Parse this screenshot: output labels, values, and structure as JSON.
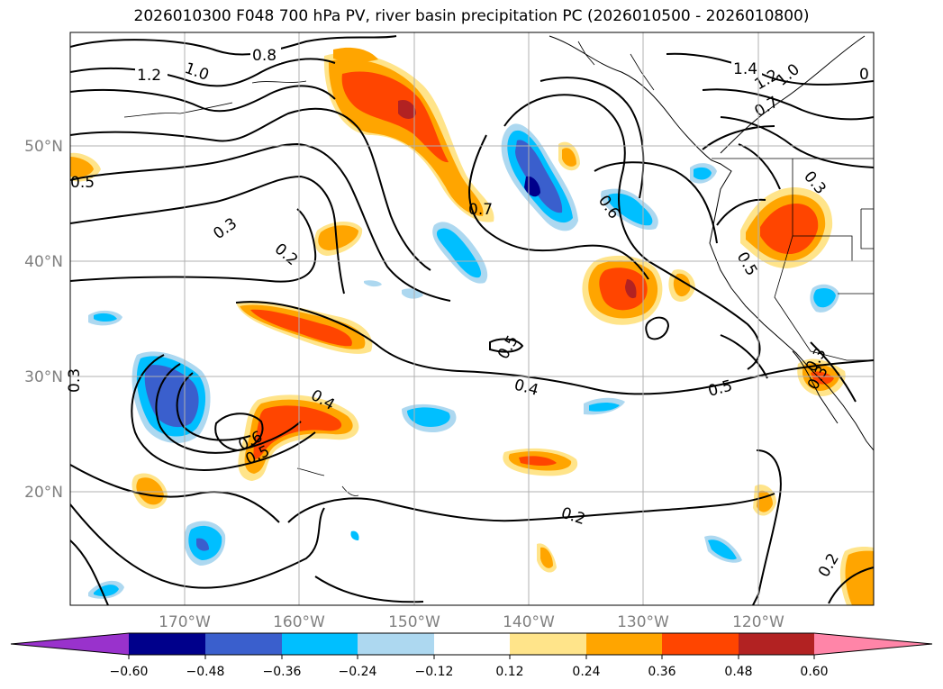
{
  "title": "2026010300 F048 700 hPa PV, river basin precipitation PC (2026010500 - 2026010800)",
  "map": {
    "lat_labels": [
      "50°N",
      "40°N",
      "30°N",
      "20°N"
    ],
    "lon_labels": [
      "170°W",
      "160°W",
      "150°W",
      "140°W",
      "130°W",
      "120°W"
    ],
    "contour_labels": [
      "1.2",
      "1.0",
      "0.8",
      "1.4",
      "1.2",
      "1.0",
      "0",
      "0.7",
      "0.5",
      "0.3",
      "0.2",
      "0.7",
      "0.6",
      "0.5",
      "0.4",
      "0.5",
      "0.6",
      "0.5",
      "0.4",
      "0.5",
      "0.3",
      "0.3",
      "0.2",
      "0.2",
      "0.3",
      "0.3"
    ],
    "grid_color": "#b0b0b0",
    "label_color": "#808080"
  },
  "colorbar": {
    "ticks": [
      "−0.60",
      "−0.48",
      "−0.36",
      "−0.24",
      "−0.12",
      "0.12",
      "0.24",
      "0.36",
      "0.48",
      "0.60"
    ],
    "colors": [
      "#9932cc",
      "#00008b",
      "#3a5fcd",
      "#00bfff",
      "#add8f0",
      "#ffffff",
      "#ffe48a",
      "#ffa500",
      "#ff4500",
      "#b22222",
      "#ff85a8"
    ]
  }
}
